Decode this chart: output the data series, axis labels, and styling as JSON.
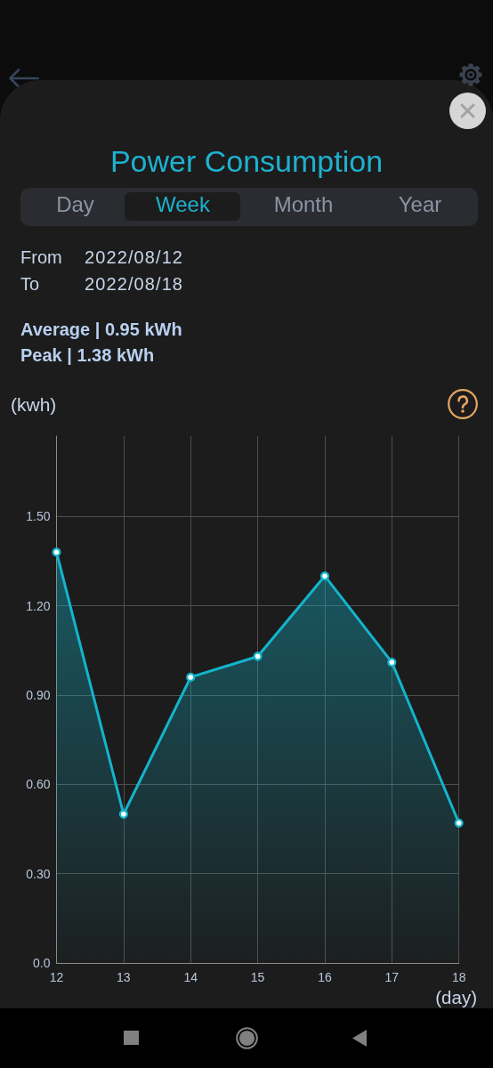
{
  "chart_data": {
    "type": "area",
    "title": "Power Consumption",
    "xlabel": "(day)",
    "ylabel": "(kwh)",
    "annotations": [
      "Day",
      "Week",
      "Month",
      "Year",
      "From",
      "2022/08/12",
      "To",
      "2022/08/18",
      "Average | 0.95 kWh",
      "Peak | 1.38 kWh"
    ],
    "x": [
      12,
      13,
      14,
      15,
      16,
      17,
      18
    ],
    "series": [
      {
        "color": "#14b4cc",
        "values": [
          1.38,
          0.5,
          0.96,
          1.03,
          1.3,
          1.01,
          0.47
        ]
      }
    ],
    "xlim": [
      12,
      18
    ],
    "xticks": [
      12,
      13,
      14,
      15,
      16,
      17,
      18
    ],
    "ylim": [
      0,
      1.77
    ],
    "yticks": [
      {
        "value": 0,
        "label": "0.0"
      },
      {
        "value": 0.3,
        "label": "0.30"
      },
      {
        "value": 0.6,
        "label": "0.60"
      },
      {
        "value": 0.9,
        "label": "0.90"
      },
      {
        "value": 1.2,
        "label": "1.20"
      },
      {
        "value": 1.5,
        "label": "1.50"
      }
    ],
    "grid": true,
    "marker": "circle"
  }
}
